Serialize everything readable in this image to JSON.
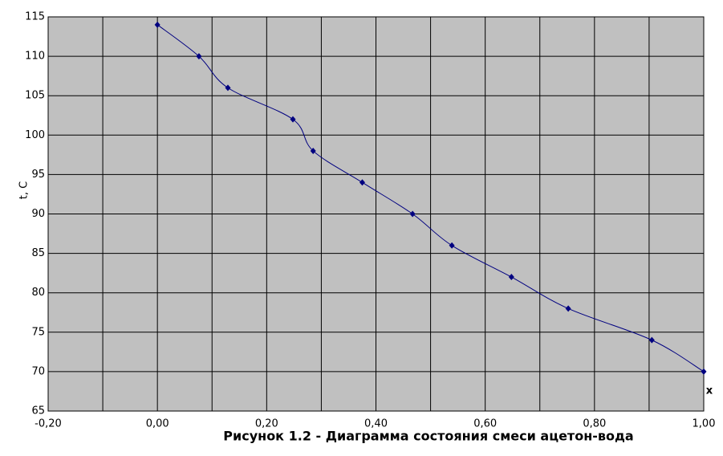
{
  "chart_data": {
    "type": "scatter",
    "title": "Рисунок 1.2 - Диаграмма состояния смеси ацетон-вода",
    "x_label": "x",
    "y_label": "t, C",
    "xlim": [
      -0.2,
      1.0
    ],
    "ylim": [
      65,
      115
    ],
    "xticks": [
      {
        "value": -0.2,
        "label": "-0,20"
      },
      {
        "value": 0,
        "label": "0,00"
      },
      {
        "value": 0.2,
        "label": "0,20"
      },
      {
        "value": 0.4,
        "label": "0,40"
      },
      {
        "value": 0.6,
        "label": "0,60"
      },
      {
        "value": 0.8,
        "label": "0,80"
      },
      {
        "value": 1.0,
        "label": "1,00"
      }
    ],
    "x_minor_grid": [
      -0.1,
      0.1,
      0.3,
      0.5,
      0.7,
      0.9
    ],
    "yticks": [
      65,
      70,
      75,
      80,
      85,
      90,
      95,
      100,
      105,
      110,
      115
    ],
    "grid": true,
    "background": "#c0c0c0",
    "smooth": true,
    "series": [
      {
        "color": "#000080",
        "x": [
          0,
          0.076,
          0.129,
          0.248,
          0.285,
          0.375,
          0.467,
          0.539,
          0.648,
          0.752,
          0.905,
          1.0
        ],
        "values": [
          114,
          110,
          106,
          102,
          98,
          94,
          90,
          86,
          82,
          78,
          74,
          70
        ]
      }
    ]
  }
}
